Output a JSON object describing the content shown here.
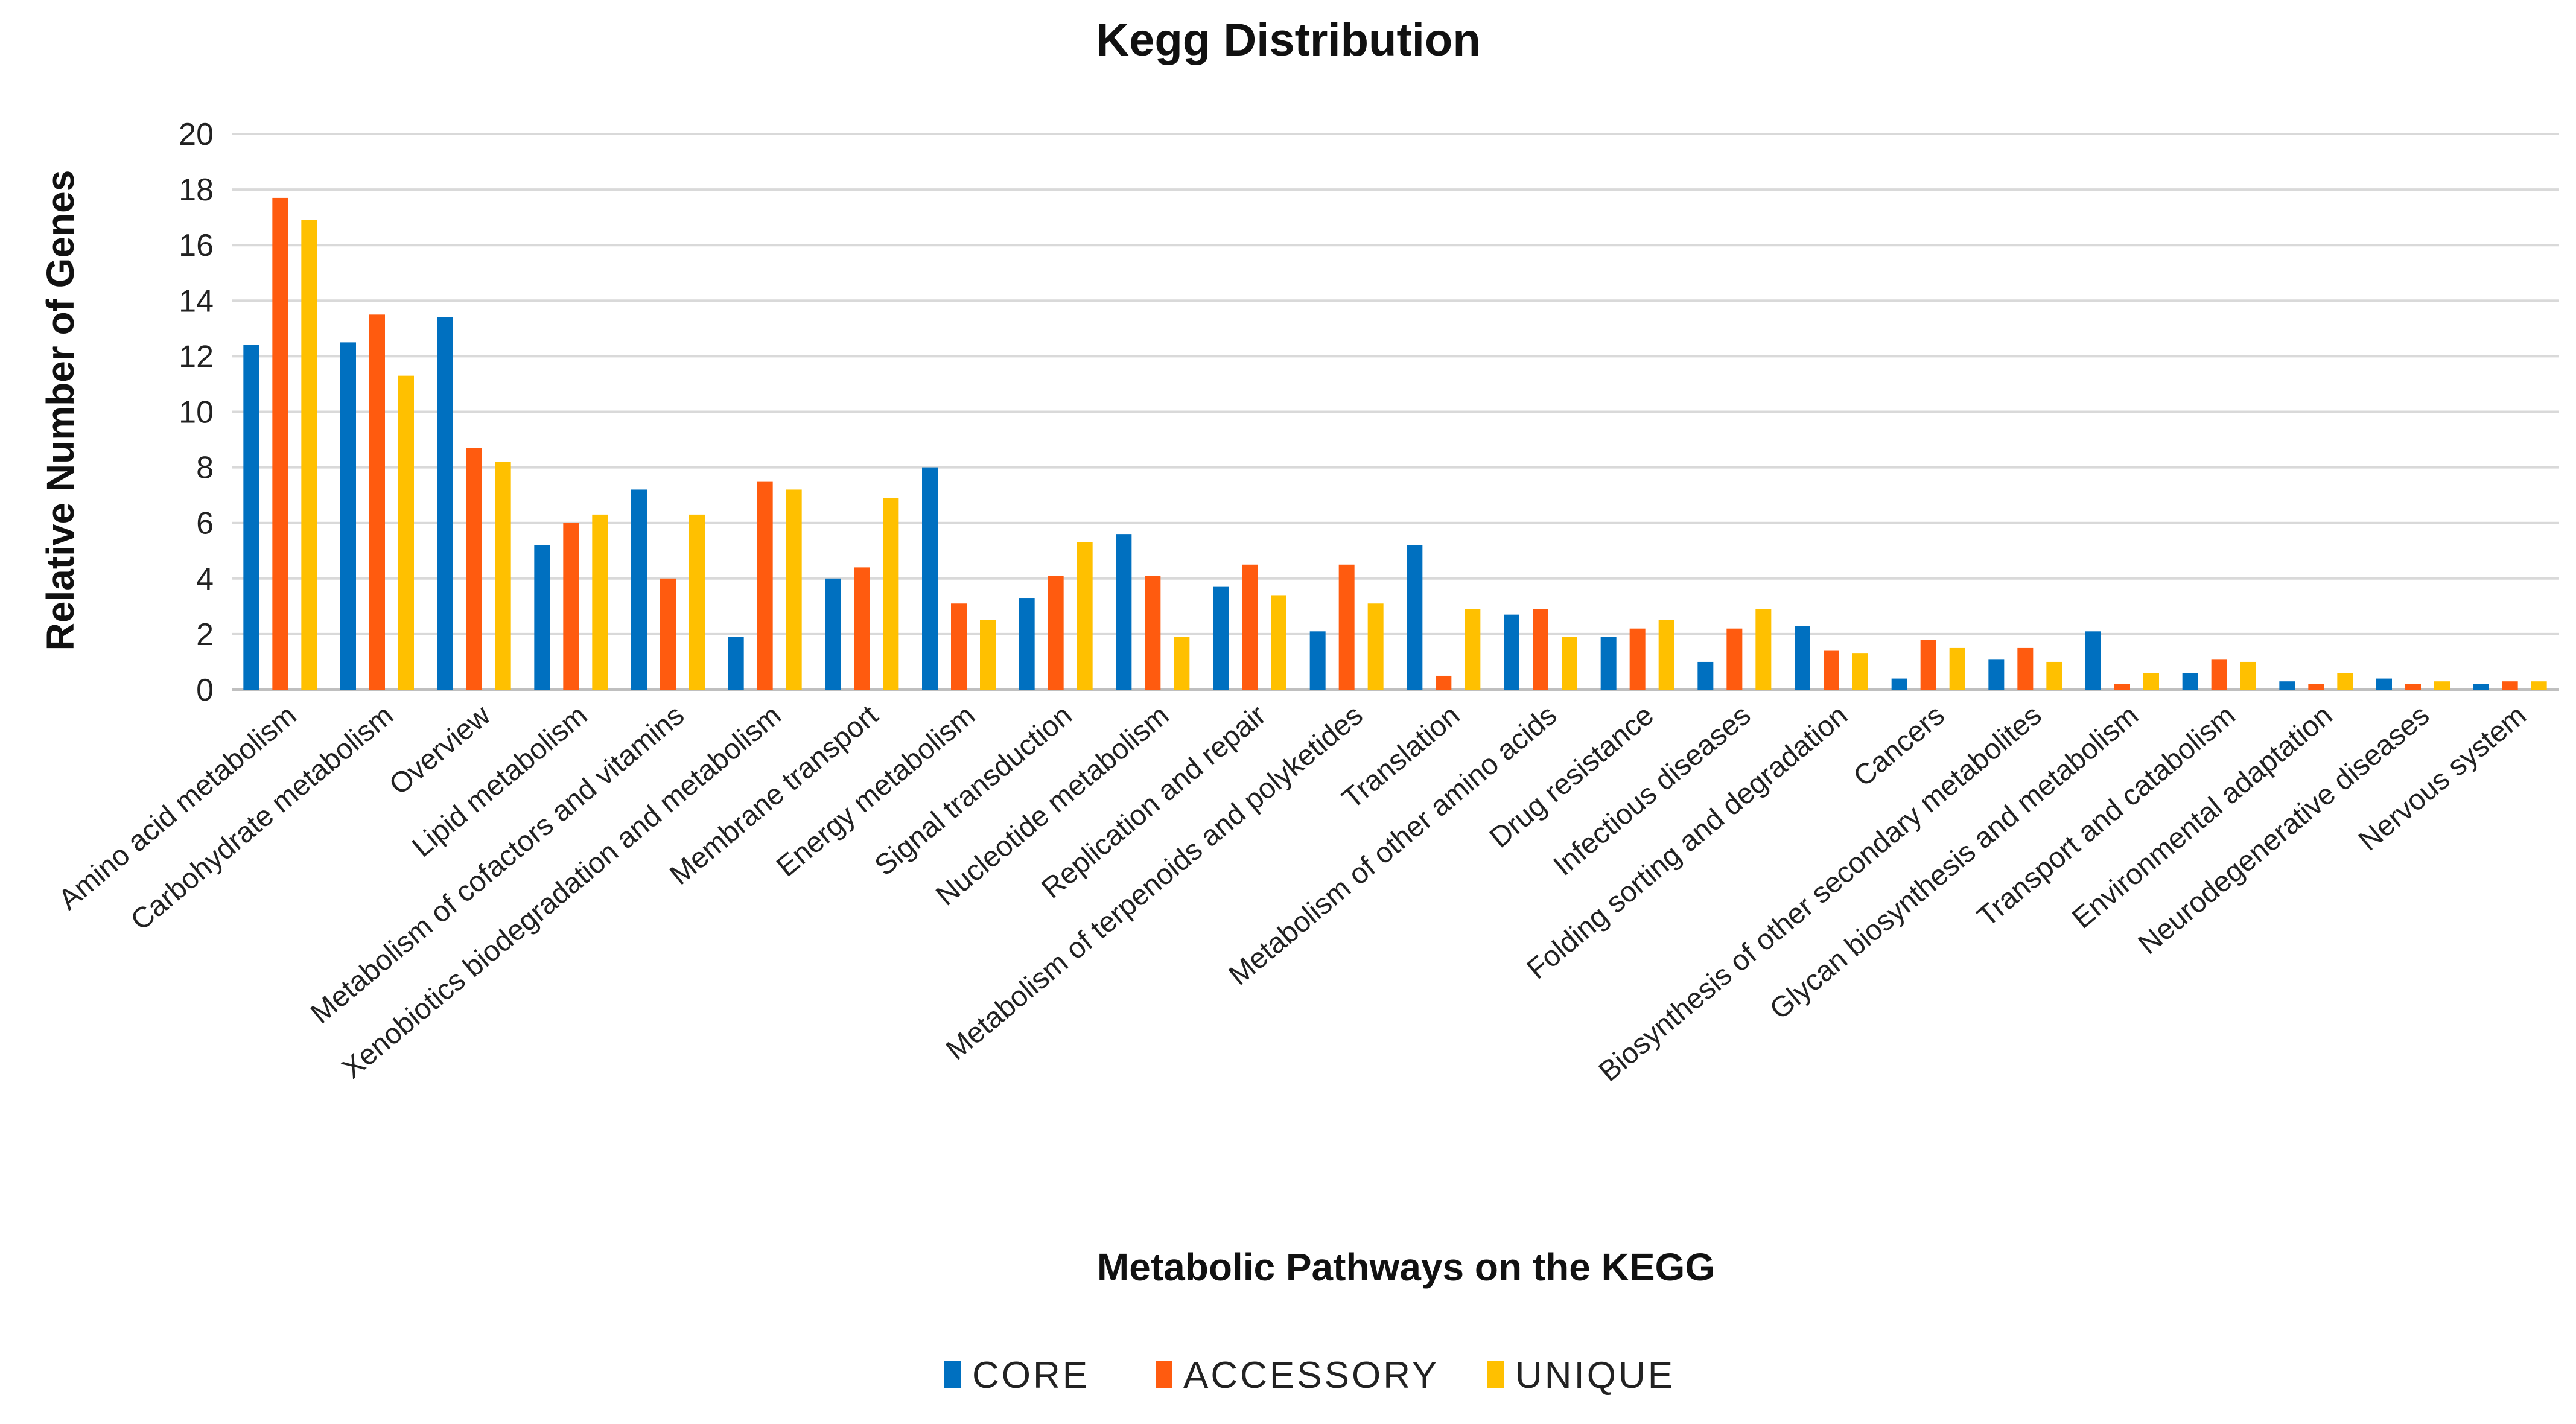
{
  "chart_data": {
    "type": "bar",
    "title": "Kegg Distribution",
    "xlabel": "Metabolic Pathways on the KEGG",
    "ylabel": "Relative Number of Genes",
    "ylim": [
      0,
      20
    ],
    "yticks": [
      0,
      2,
      4,
      6,
      8,
      10,
      12,
      14,
      16,
      18,
      20
    ],
    "grid": true,
    "legend_position": "bottom",
    "categories": [
      "Amino acid metabolism",
      "Carbohydrate metabolism",
      "Overview",
      "Lipid metabolism",
      "Metabolism of cofactors and vitamins",
      "Xenobiotics biodegradation and metabolism",
      "Membrane transport",
      "Energy metabolism",
      "Signal transduction",
      "Nucleotide metabolism",
      "Replication and repair",
      "Metabolism of terpenoids and polyketides",
      "Translation",
      "Metabolism of other amino acids",
      "Drug resistance",
      "Infectious diseases",
      "Folding sorting and degradation",
      "Cancers",
      "Biosynthesis of other secondary metabolites",
      "Glycan biosynthesis and metabolism",
      "Transport and catabolism",
      "Environmental adaptation",
      "Neurodegenerative diseases",
      "Nervous system"
    ],
    "series": [
      {
        "name": "CORE",
        "color": "#0070C0",
        "values": [
          12.4,
          12.5,
          13.4,
          5.2,
          7.2,
          1.9,
          4.0,
          8.0,
          3.3,
          5.6,
          3.7,
          2.1,
          5.2,
          2.7,
          1.9,
          1.0,
          2.3,
          0.4,
          1.1,
          2.1,
          0.6,
          0.3,
          0.4,
          0.2
        ]
      },
      {
        "name": "ACCESSORY",
        "color": "#FF5B0F",
        "values": [
          17.7,
          13.5,
          8.7,
          6.0,
          4.0,
          7.5,
          4.4,
          3.1,
          4.1,
          4.1,
          4.5,
          4.5,
          0.5,
          2.9,
          2.2,
          2.2,
          1.4,
          1.8,
          1.5,
          0.2,
          1.1,
          0.2,
          0.2,
          0.3
        ]
      },
      {
        "name": "UNIQUE",
        "color": "#FFC000",
        "values": [
          16.9,
          11.3,
          8.2,
          6.3,
          6.3,
          7.2,
          6.9,
          2.5,
          5.3,
          1.9,
          3.4,
          3.1,
          2.9,
          1.9,
          2.5,
          2.9,
          1.3,
          1.5,
          1.0,
          0.6,
          1.0,
          0.6,
          0.3,
          0.3
        ]
      }
    ]
  }
}
